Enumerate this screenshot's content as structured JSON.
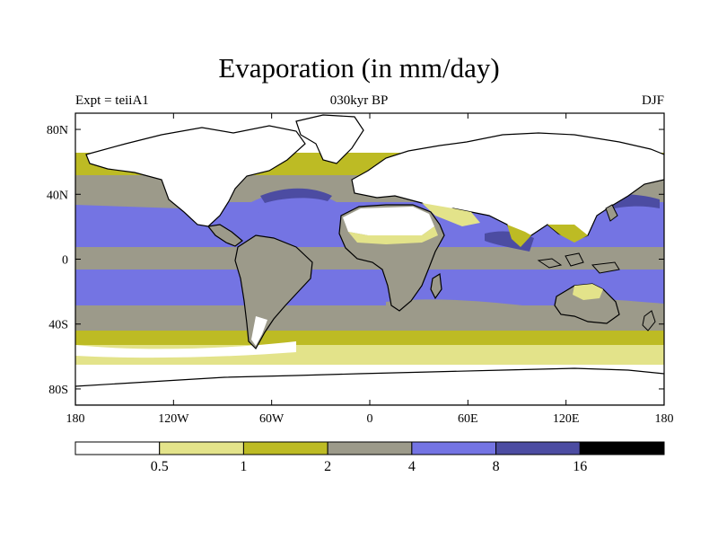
{
  "title": "Evaporation (in mm/day)",
  "subtitle_left": "Expt = teiiA1",
  "subtitle_center": "030kyr BP",
  "subtitle_right": "DJF",
  "map": {
    "projection": "cylindrical-equidistant",
    "lat_labels": [
      "80N",
      "40N",
      "0",
      "40S",
      "80S"
    ],
    "lon_labels": [
      "180",
      "120W",
      "60W",
      "0",
      "60E",
      "120E",
      "180"
    ],
    "lon_range": [
      -180,
      180
    ],
    "lat_range": [
      -90,
      90
    ]
  },
  "legend": {
    "colors": [
      "#ffffff",
      "#e3e38a",
      "#bdbb24",
      "#9c9a8a",
      "#7474e3",
      "#4c4ca2",
      "#000000"
    ],
    "labels": [
      "0.5",
      "1",
      "2",
      "4",
      "8",
      "16"
    ]
  }
}
